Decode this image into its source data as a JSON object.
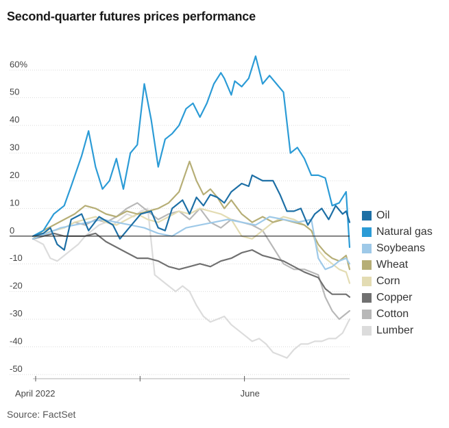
{
  "title": "Second-quarter futures prices performance",
  "source": "Source: FactSet",
  "chart_data": {
    "type": "line",
    "title": "Second-quarter futures prices performance",
    "x_tick_labels": [
      "April 2022",
      "June"
    ],
    "y_tick_labels": [
      "60%",
      "50",
      "40",
      "30",
      "20",
      "10",
      "0",
      "-10",
      "-20",
      "-30",
      "-40",
      "-50"
    ],
    "y_ticks": [
      60,
      50,
      40,
      30,
      20,
      10,
      0,
      -10,
      -20,
      -30,
      -40,
      -50
    ],
    "ylim": [
      -52,
      66
    ],
    "xlim": [
      0,
      91
    ],
    "grid": true,
    "legend_position": "right",
    "series": [
      {
        "name": "Oil",
        "color": "#1d6fa5",
        "x": [
          0,
          3,
          5,
          7,
          9,
          11,
          14,
          16,
          19,
          23,
          25,
          29,
          31,
          34,
          36,
          38,
          40,
          43,
          45,
          47,
          49,
          51,
          53,
          55,
          57,
          60,
          62,
          63,
          66,
          69,
          71,
          73,
          75,
          77,
          79,
          81,
          83,
          85,
          87,
          89,
          90,
          91
        ],
        "y": [
          0,
          1,
          3,
          -3,
          -5,
          6,
          8,
          2,
          7,
          4,
          -1,
          5,
          8,
          9,
          3,
          2,
          10,
          13,
          8,
          14,
          11,
          15,
          14,
          12,
          16,
          19,
          18,
          22,
          20,
          20,
          15,
          9,
          9,
          10,
          4,
          8,
          10,
          6,
          11,
          8,
          9,
          5
        ]
      },
      {
        "name": "Natural gas",
        "color": "#2b9bd6",
        "x": [
          0,
          3,
          6,
          9,
          11,
          14,
          16,
          18,
          20,
          22,
          24,
          26,
          28,
          30,
          32,
          34,
          36,
          38,
          40,
          42,
          44,
          46,
          48,
          50,
          52,
          54,
          55,
          57,
          58,
          60,
          62,
          64,
          66,
          68,
          70,
          72,
          74,
          76,
          78,
          80,
          82,
          84,
          86,
          88,
          90,
          91
        ],
        "y": [
          0,
          2,
          8,
          11,
          18,
          29,
          38,
          25,
          17,
          20,
          28,
          17,
          30,
          33,
          55,
          42,
          25,
          35,
          37,
          40,
          46,
          48,
          43,
          48,
          55,
          59,
          57,
          51,
          56,
          54,
          57,
          65,
          55,
          58,
          55,
          52,
          30,
          32,
          28,
          22,
          22,
          21,
          11,
          12,
          16,
          -4
        ]
      },
      {
        "name": "Soybeans",
        "color": "#9ec9e8",
        "x": [
          0,
          4,
          8,
          12,
          16,
          20,
          24,
          28,
          32,
          36,
          40,
          44,
          48,
          52,
          56,
          60,
          64,
          68,
          72,
          76,
          80,
          82,
          84,
          86,
          88,
          90,
          91
        ],
        "y": [
          -1,
          1,
          3,
          4,
          5,
          6,
          5,
          4,
          3,
          1,
          0,
          3,
          4,
          5,
          6,
          5,
          4,
          7,
          6,
          5,
          6,
          -8,
          -12,
          -11,
          -9,
          -8,
          -10
        ]
      },
      {
        "name": "Wheat",
        "color": "#b6ae76",
        "x": [
          0,
          3,
          6,
          9,
          12,
          15,
          18,
          21,
          24,
          27,
          30,
          33,
          36,
          39,
          42,
          45,
          47,
          49,
          51,
          53,
          55,
          57,
          60,
          63,
          66,
          69,
          72,
          75,
          78,
          80,
          82,
          84,
          86,
          88,
          90,
          91
        ],
        "y": [
          -1,
          2,
          4,
          6,
          8,
          11,
          10,
          8,
          7,
          9,
          8,
          9,
          10,
          12,
          16,
          27,
          20,
          15,
          17,
          14,
          10,
          13,
          8,
          5,
          7,
          5,
          6,
          5,
          4,
          2,
          -3,
          -6,
          -8,
          -9,
          -7,
          -12
        ]
      },
      {
        "name": "Corn",
        "color": "#e3dcb3",
        "x": [
          0,
          3,
          6,
          9,
          12,
          15,
          18,
          21,
          24,
          27,
          30,
          33,
          36,
          39,
          42,
          45,
          48,
          51,
          54,
          57,
          60,
          63,
          66,
          69,
          72,
          75,
          78,
          80,
          82,
          84,
          86,
          88,
          90,
          91
        ],
        "y": [
          0,
          1,
          2,
          3,
          5,
          6,
          7,
          5,
          4,
          6,
          8,
          6,
          5,
          7,
          9,
          8,
          10,
          9,
          8,
          6,
          0,
          -1,
          2,
          5,
          7,
          6,
          4,
          2,
          -5,
          -8,
          -10,
          -12,
          -13,
          -17
        ]
      },
      {
        "name": "Copper",
        "color": "#707070",
        "x": [
          0,
          3,
          6,
          9,
          12,
          15,
          18,
          21,
          24,
          27,
          30,
          33,
          36,
          39,
          42,
          45,
          48,
          51,
          54,
          57,
          60,
          63,
          66,
          69,
          72,
          75,
          78,
          80,
          82,
          84,
          86,
          88,
          90,
          91
        ],
        "y": [
          -1,
          0,
          1,
          0,
          0,
          0,
          1,
          -2,
          -4,
          -6,
          -8,
          -8,
          -9,
          -11,
          -12,
          -11,
          -10,
          -11,
          -9,
          -8,
          -6,
          -5,
          -7,
          -8,
          -9,
          -11,
          -13,
          -14,
          -15,
          -19,
          -21,
          -21,
          -21,
          -22
        ]
      },
      {
        "name": "Cotton",
        "color": "#b8b8b8",
        "x": [
          0,
          3,
          6,
          9,
          12,
          15,
          18,
          21,
          24,
          27,
          30,
          33,
          36,
          39,
          42,
          45,
          48,
          51,
          54,
          57,
          60,
          63,
          66,
          69,
          72,
          75,
          78,
          80,
          82,
          84,
          86,
          88,
          90,
          91
        ],
        "y": [
          -1,
          1,
          2,
          3,
          5,
          4,
          6,
          5,
          7,
          10,
          12,
          9,
          6,
          8,
          9,
          6,
          10,
          5,
          3,
          6,
          5,
          4,
          2,
          -4,
          -10,
          -12,
          -12,
          -13,
          -14,
          -22,
          -27,
          -30,
          -28,
          -27
        ]
      },
      {
        "name": "Lumber",
        "color": "#dcdcdc",
        "x": [
          0,
          3,
          5,
          7,
          9,
          11,
          13,
          15,
          17,
          19,
          21,
          23,
          25,
          27,
          29,
          31,
          33,
          35,
          37,
          39,
          41,
          43,
          45,
          47,
          49,
          51,
          53,
          55,
          57,
          59,
          61,
          63,
          65,
          67,
          69,
          71,
          73,
          75,
          77,
          79,
          81,
          83,
          85,
          87,
          89,
          91
        ],
        "y": [
          -1,
          -3,
          -8,
          -9,
          -7,
          -5,
          -3,
          0,
          2,
          4,
          5,
          4,
          6,
          8,
          7,
          9,
          10,
          -14,
          -16,
          -18,
          -20,
          -18,
          -20,
          -25,
          -29,
          -31,
          -30,
          -29,
          -32,
          -34,
          -36,
          -38,
          -37,
          -39,
          -42,
          -43,
          -44,
          -41,
          -39,
          -39,
          -38,
          -38,
          -37,
          -37,
          -35,
          -30
        ]
      }
    ]
  }
}
